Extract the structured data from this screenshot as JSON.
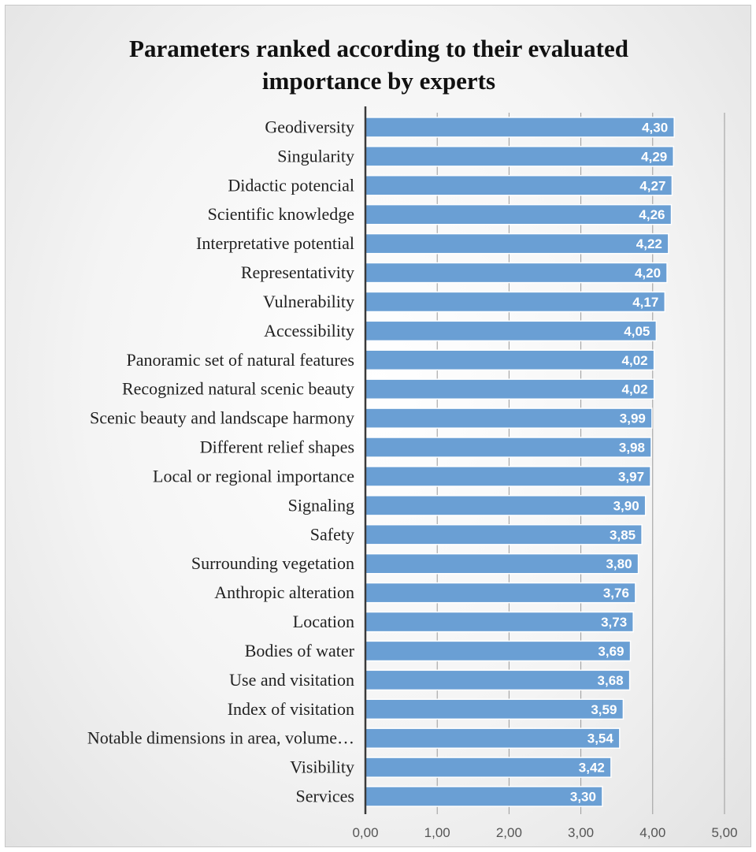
{
  "chart_data": {
    "type": "bar",
    "orientation": "horizontal",
    "title_lines": [
      "Parameters ranked according to their evaluated",
      "importance by experts"
    ],
    "categories": [
      "Geodiversity",
      "Singularity",
      "Didactic potencial",
      "Scientific knowledge",
      "Interpretative potential",
      "Representativity",
      "Vulnerability",
      "Accessibility",
      "Panoramic set of natural features",
      "Recognized natural scenic beauty",
      "Scenic beauty and landscape harmony",
      "Different relief shapes",
      "Local or regional importance",
      "Signaling",
      "Safety",
      "Surrounding vegetation",
      "Anthropic alteration",
      "Location",
      "Bodies of water",
      "Use and visitation",
      "Index of visitation",
      "Notable dimensions in area, volume…",
      "Visibility",
      "Services"
    ],
    "values": [
      4.3,
      4.29,
      4.27,
      4.26,
      4.22,
      4.2,
      4.17,
      4.05,
      4.02,
      4.02,
      3.99,
      3.98,
      3.97,
      3.9,
      3.85,
      3.8,
      3.76,
      3.73,
      3.69,
      3.68,
      3.59,
      3.54,
      3.42,
      3.3
    ],
    "value_labels": [
      "4,30",
      "4,29",
      "4,27",
      "4,26",
      "4,22",
      "4,20",
      "4,17",
      "4,05",
      "4,02",
      "4,02",
      "3,99",
      "3,98",
      "3,97",
      "3,90",
      "3,85",
      "3,80",
      "3,76",
      "3,73",
      "3,69",
      "3,68",
      "3,59",
      "3,54",
      "3,42",
      "3,30"
    ],
    "xlim": [
      0,
      5
    ],
    "x_ticks": [
      0,
      1,
      2,
      3,
      4,
      5
    ],
    "x_tick_labels": [
      "0,00",
      "1,00",
      "2,00",
      "3,00",
      "4,00",
      "5,00"
    ],
    "grid": true,
    "legend": false,
    "bar_color": "#6a9fd4",
    "bar_edge_color": "#ffffff"
  }
}
